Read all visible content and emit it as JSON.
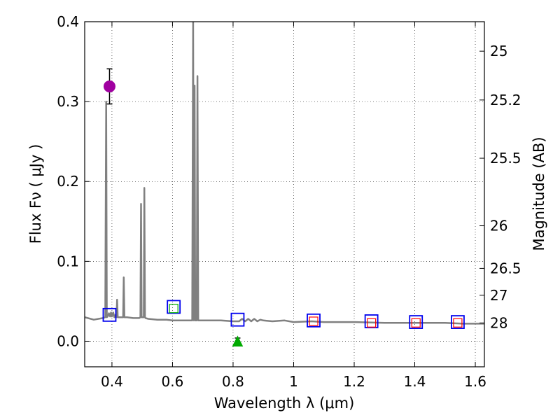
{
  "chart_data": {
    "type": "line",
    "title": "",
    "xlabel": "Wavelength  λ (μm)",
    "ylabel": "Flux  Fν  ( μJy )",
    "ylabel_right": "Magnitude (AB)",
    "xlim": [
      0.31,
      1.63
    ],
    "ylim": [
      -0.032,
      0.4
    ],
    "grid": true,
    "x_ticks": [
      {
        "value": 0.4,
        "label": "0.4"
      },
      {
        "value": 0.6,
        "label": "0.6"
      },
      {
        "value": 0.8,
        "label": "0.8"
      },
      {
        "value": 1.0,
        "label": "1"
      },
      {
        "value": 1.2,
        "label": "1.2"
      },
      {
        "value": 1.4,
        "label": "1.4"
      },
      {
        "value": 1.6,
        "label": "1.6"
      }
    ],
    "y_ticks": [
      {
        "value": 0.0,
        "label": "0.0"
      },
      {
        "value": 0.1,
        "label": "0.1"
      },
      {
        "value": 0.2,
        "label": "0.2"
      },
      {
        "value": 0.3,
        "label": "0.3"
      },
      {
        "value": 0.4,
        "label": "0.4"
      }
    ],
    "magnitude_ticks": [
      {
        "value": 25,
        "label": "25"
      },
      {
        "value": 25.2,
        "label": "25.2"
      },
      {
        "value": 25.5,
        "label": "25.5"
      },
      {
        "value": 26,
        "label": "26"
      },
      {
        "value": 26.5,
        "label": "26.5"
      },
      {
        "value": 27,
        "label": "27"
      },
      {
        "value": 28,
        "label": "28"
      }
    ],
    "series": [
      {
        "name": "SED model",
        "style": "line",
        "color": "#808080",
        "x": [
          0.31,
          0.34,
          0.37,
          0.378,
          0.381,
          0.383,
          0.386,
          0.39,
          0.394,
          0.397,
          0.4,
          0.404,
          0.408,
          0.412,
          0.415,
          0.417,
          0.419,
          0.421,
          0.43,
          0.437,
          0.439,
          0.441,
          0.45,
          0.47,
          0.49,
          0.494,
          0.496,
          0.498,
          0.5,
          0.503,
          0.505,
          0.507,
          0.509,
          0.511,
          0.52,
          0.55,
          0.58,
          0.6,
          0.63,
          0.665,
          0.668,
          0.6705,
          0.673,
          0.675,
          0.6775,
          0.68,
          0.6825,
          0.685,
          0.69,
          0.72,
          0.76,
          0.8,
          0.82,
          0.83,
          0.84,
          0.85,
          0.86,
          0.87,
          0.88,
          0.89,
          0.9,
          0.93,
          0.97,
          1.0,
          1.06,
          1.1,
          1.2,
          1.3,
          1.4,
          1.5,
          1.56,
          1.63
        ],
        "values": [
          0.03,
          0.027,
          0.029,
          0.03,
          0.3,
          0.03,
          0.031,
          0.035,
          0.031,
          0.036,
          0.031,
          0.036,
          0.03,
          0.033,
          0.03,
          0.052,
          0.03,
          0.03,
          0.03,
          0.03,
          0.08,
          0.03,
          0.03,
          0.029,
          0.029,
          0.03,
          0.172,
          0.03,
          0.03,
          0.03,
          0.03,
          0.192,
          0.03,
          0.029,
          0.028,
          0.027,
          0.027,
          0.026,
          0.026,
          0.026,
          0.4,
          0.026,
          0.32,
          0.026,
          0.026,
          0.026,
          0.332,
          0.026,
          0.026,
          0.026,
          0.026,
          0.025,
          0.025,
          0.028,
          0.025,
          0.028,
          0.025,
          0.028,
          0.025,
          0.027,
          0.026,
          0.025,
          0.026,
          0.024,
          0.025,
          0.024,
          0.024,
          0.023,
          0.023,
          0.023,
          0.022,
          0.022
        ]
      },
      {
        "name": "Observed (magenta)",
        "style": "circle",
        "color": "#a000a0",
        "points": [
          {
            "x": 0.392,
            "y": 0.319,
            "yerr": 0.022
          }
        ]
      },
      {
        "name": "Observed (green, upper limit)",
        "style": "triangle",
        "color": "#00aa00",
        "points": [
          {
            "x": 0.815,
            "y": 0.0,
            "yerr": 0.004
          }
        ]
      },
      {
        "name": "Model photometry (blue squares)",
        "style": "square",
        "color": "#0000ee",
        "points": [
          {
            "x": 0.392,
            "y": 0.033
          },
          {
            "x": 0.604,
            "y": 0.043
          },
          {
            "x": 0.815,
            "y": 0.027
          },
          {
            "x": 1.066,
            "y": 0.026
          },
          {
            "x": 1.257,
            "y": 0.025
          },
          {
            "x": 1.404,
            "y": 0.024
          },
          {
            "x": 1.542,
            "y": 0.024
          }
        ]
      },
      {
        "name": "Observed (red squares)",
        "style": "open-square",
        "color": "#ff0000",
        "points": [
          {
            "x": 1.066,
            "y": 0.025
          },
          {
            "x": 1.257,
            "y": 0.023
          },
          {
            "x": 1.404,
            "y": 0.023
          },
          {
            "x": 1.542,
            "y": 0.023
          }
        ]
      },
      {
        "name": "Observed (green square)",
        "style": "open-square",
        "color": "#00aa00",
        "points": [
          {
            "x": 0.604,
            "y": 0.041
          }
        ]
      }
    ]
  }
}
